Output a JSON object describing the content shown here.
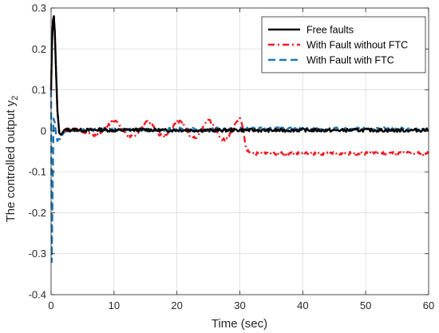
{
  "chart_data": {
    "type": "line",
    "title": "",
    "xlabel": "Time  (sec)",
    "ylabel": "The controlled output  y",
    "ylabel_subscript": "2",
    "xlim": [
      0,
      60
    ],
    "ylim": [
      -0.4,
      0.3
    ],
    "xticks": [
      0,
      10,
      20,
      30,
      40,
      50,
      60
    ],
    "yticks": [
      -0.4,
      -0.3,
      -0.2,
      -0.1,
      0,
      0.1,
      0.2,
      0.3
    ],
    "xtick_labels": [
      "0",
      "10",
      "20",
      "30",
      "40",
      "50",
      "60"
    ],
    "ytick_labels": [
      "-0.4",
      "-0.3",
      "-0.2",
      "-0.1",
      "0",
      "0.1",
      "0.2",
      "0.3"
    ],
    "grid": true,
    "legend_position": "top-right",
    "series": [
      {
        "name": "Free faults",
        "color": "#000000",
        "style": "solid",
        "x": [
          0,
          0.15,
          0.3,
          0.45,
          0.6,
          0.8,
          1.0,
          1.3,
          1.6,
          2.0,
          2.5,
          3,
          4,
          5,
          6,
          8,
          10,
          12,
          15,
          18,
          20,
          25,
          30,
          35,
          40,
          45,
          50,
          55,
          60
        ],
        "y": [
          0.1,
          0.22,
          0.27,
          0.28,
          0.24,
          0.14,
          0.05,
          -0.005,
          -0.01,
          0.0,
          0.003,
          0.002,
          0.003,
          0.001,
          0.002,
          0.003,
          0.001,
          0.002,
          0.003,
          0.001,
          0.002,
          0.001,
          0.002,
          0.001,
          0.002,
          0.001,
          0.002,
          0.001,
          0.002
        ],
        "noise": 0.004
      },
      {
        "name": "With Fault without FTC",
        "color": "#ee1c24",
        "style": "dashdot",
        "x": [
          0,
          0.15,
          0.3,
          0.45,
          0.6,
          0.8,
          1.0,
          1.3,
          1.6,
          2.0,
          2.5,
          3,
          4,
          5,
          6,
          7,
          8,
          9,
          10,
          11,
          12,
          13,
          14,
          15,
          16,
          17,
          18,
          19,
          20,
          21,
          22,
          23,
          24,
          25,
          26,
          27,
          28,
          29,
          30,
          30.5,
          31,
          32,
          35,
          40,
          45,
          50,
          55,
          60
        ],
        "y": [
          0.1,
          0.22,
          0.27,
          0.28,
          0.24,
          0.14,
          0.05,
          -0.005,
          -0.01,
          0.0,
          0.003,
          0.002,
          0.005,
          0.0,
          -0.007,
          -0.01,
          -0.005,
          0.015,
          0.025,
          0.012,
          -0.008,
          -0.015,
          0.0,
          0.022,
          0.018,
          -0.005,
          -0.015,
          0.0,
          0.025,
          0.018,
          -0.01,
          -0.02,
          0.005,
          0.028,
          0.01,
          -0.02,
          -0.02,
          0.01,
          0.03,
          0.005,
          -0.045,
          -0.055,
          -0.055,
          -0.055,
          -0.055,
          -0.055,
          -0.055,
          -0.055
        ],
        "noise": 0.004
      },
      {
        "name": "With Fault with FTC",
        "color": "#1f77b4",
        "style": "dashed",
        "x": [
          0,
          0.1,
          0.2,
          0.3,
          0.4,
          0.6,
          0.8,
          1.0,
          1.2,
          1.5,
          1.8,
          2.0,
          2.5,
          3,
          4,
          5,
          6,
          8,
          10,
          12,
          15,
          18,
          20,
          25,
          30,
          35,
          40,
          45,
          50,
          55,
          60
        ],
        "y": [
          0.1,
          -0.32,
          -0.2,
          -0.08,
          0.03,
          0.02,
          -0.01,
          -0.025,
          -0.02,
          -0.02,
          -0.01,
          -0.005,
          0.002,
          0.001,
          0.002,
          0.001,
          0.002,
          0.003,
          0.002,
          0.003,
          0.002,
          0.003,
          0.004,
          0.004,
          0.005,
          0.005,
          0.004,
          0.005,
          0.005,
          0.005,
          0.005
        ],
        "noise": 0.004
      }
    ]
  }
}
